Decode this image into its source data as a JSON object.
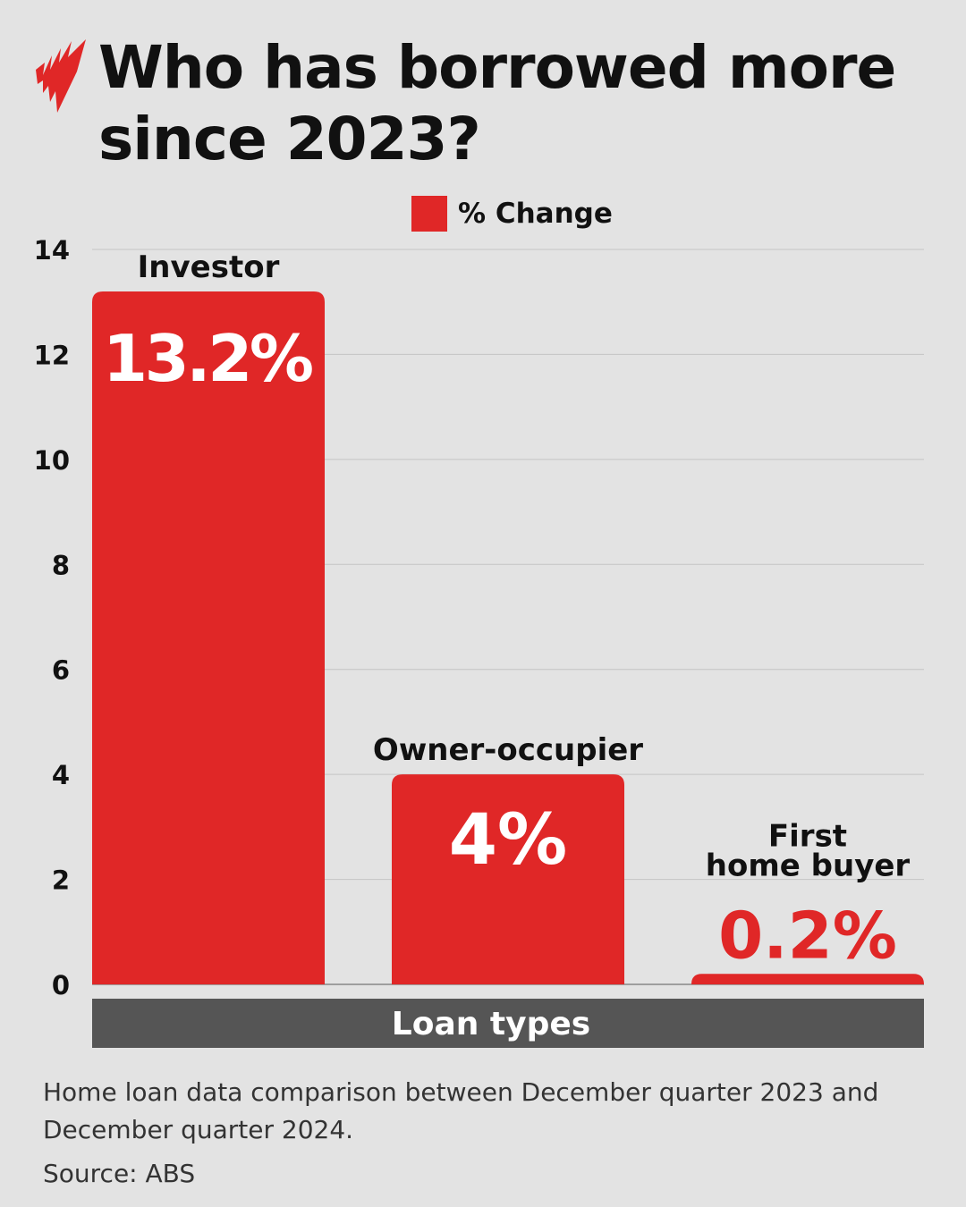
{
  "title": "Who has borrowed more since 2023?",
  "logo": "sbs-news-logo",
  "chart_data": {
    "type": "bar",
    "title": "Who has borrowed more since 2023?",
    "categories": [
      "Investor",
      "Owner-occupier",
      "First home buyer"
    ],
    "category_label_lines": [
      [
        "Investor"
      ],
      [
        "Owner-occupier"
      ],
      [
        "First",
        "home buyer"
      ]
    ],
    "series": [
      {
        "name": "% Change",
        "values": [
          13.2,
          4,
          0.2
        ],
        "color": "#e02727"
      }
    ],
    "data_labels": [
      "13.2%",
      "4%",
      "0.2%"
    ],
    "xlabel": "Loan types",
    "ylabel": "",
    "ylim": [
      0,
      14
    ],
    "yticks": [
      0,
      2,
      4,
      6,
      8,
      10,
      12,
      14
    ],
    "grid": true,
    "legend": "top-center"
  },
  "footer": {
    "note": "Home loan data comparison between December quarter 2023 and December quarter 2024.",
    "source": "Source: ABS"
  },
  "colors": {
    "bar": "#e02727",
    "background": "#e3e3e3",
    "axis_band": "#555555",
    "text": "#111111"
  }
}
